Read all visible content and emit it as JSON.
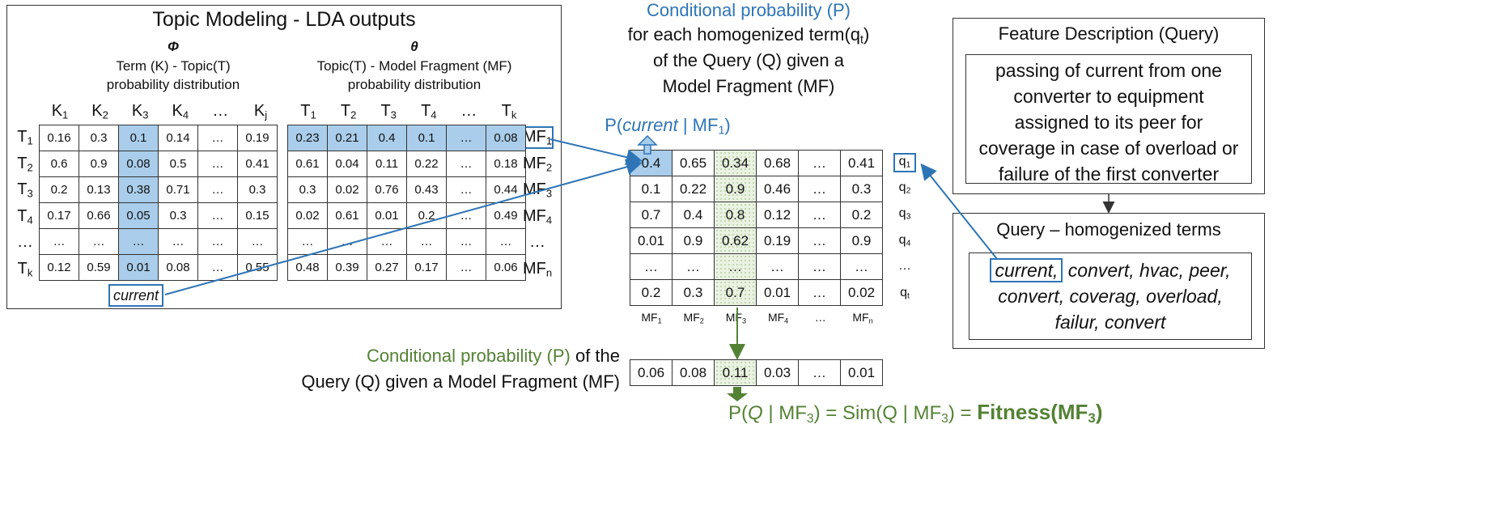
{
  "lda_title": "Topic Modeling - LDA outputs",
  "phi": {
    "symbol": "Φ",
    "caption1": "Term (K) - Topic(T)",
    "caption2": "probability distribution",
    "col_headers": [
      "K",
      "K",
      "K",
      "K",
      "…",
      "K"
    ],
    "col_subs": [
      "1",
      "2",
      "3",
      "4",
      "",
      "j"
    ],
    "row_headers": [
      "T",
      "T",
      "T",
      "T",
      "…",
      "T"
    ],
    "row_subs": [
      "1",
      "2",
      "3",
      "4",
      "",
      "k"
    ],
    "rows": [
      [
        "0.16",
        "0.3",
        "0.1",
        "0.14",
        "…",
        "0.19"
      ],
      [
        "0.6",
        "0.9",
        "0.08",
        "0.5",
        "…",
        "0.41"
      ],
      [
        "0.2",
        "0.13",
        "0.38",
        "0.71",
        "…",
        "0.3"
      ],
      [
        "0.17",
        "0.66",
        "0.05",
        "0.3",
        "…",
        "0.15"
      ],
      [
        "…",
        "…",
        "…",
        "…",
        "…",
        "…"
      ],
      [
        "0.12",
        "0.59",
        "0.01",
        "0.08",
        "…",
        "0.55"
      ]
    ],
    "term_label": "current"
  },
  "theta": {
    "symbol": "θ",
    "caption1": "Topic(T) - Model Fragment (MF)",
    "caption2": "probability distribution",
    "col_headers": [
      "T",
      "T",
      "T",
      "T",
      "…",
      "T"
    ],
    "col_subs": [
      "1",
      "2",
      "3",
      "4",
      "",
      "k"
    ],
    "row_headers": [
      "MF",
      "MF",
      "MF",
      "MF",
      "…",
      "MF"
    ],
    "row_subs": [
      "1",
      "2",
      "3",
      "4",
      "",
      "n"
    ],
    "rows": [
      [
        "0.23",
        "0.21",
        "0.4",
        "0.1",
        "…",
        "0.08"
      ],
      [
        "0.61",
        "0.04",
        "0.11",
        "0.22",
        "…",
        "0.18"
      ],
      [
        "0.3",
        "0.02",
        "0.76",
        "0.43",
        "…",
        "0.44"
      ],
      [
        "0.02",
        "0.61",
        "0.01",
        "0.2",
        "…",
        "0.49"
      ],
      [
        "…",
        "…",
        "…",
        "…",
        "…",
        "…"
      ],
      [
        "0.48",
        "0.39",
        "0.27",
        "0.17",
        "…",
        "0.06"
      ]
    ]
  },
  "cond_prob_term": {
    "line1": "Conditional probability (P)",
    "line2": "for each homogenized term(q",
    "line2_sub": "t",
    "line2_end": ")",
    "line3": "of the Query (Q) given a",
    "line4": "Model Fragment (MF)"
  },
  "p_current": {
    "prefix": "P(",
    "term": "current",
    "mid": " | MF",
    "sub": "1",
    "suffix": ")"
  },
  "query_matrix": {
    "rows": [
      [
        "0.4",
        "0.65",
        "0.34",
        "0.68",
        "…",
        "0.41"
      ],
      [
        "0.1",
        "0.22",
        "0.9",
        "0.46",
        "…",
        "0.3"
      ],
      [
        "0.7",
        "0.4",
        "0.8",
        "0.12",
        "…",
        "0.2"
      ],
      [
        "0.01",
        "0.9",
        "0.62",
        "0.19",
        "…",
        "0.9"
      ],
      [
        "…",
        "…",
        "…",
        "…",
        "…",
        "…"
      ],
      [
        "0.2",
        "0.3",
        "0.7",
        "0.01",
        "…",
        "0.02"
      ]
    ],
    "row_labels": [
      "q",
      "q",
      "q",
      "q",
      "…",
      "q"
    ],
    "row_subs": [
      "1",
      "2",
      "3",
      "4",
      "",
      "t"
    ],
    "col_labels": [
      "MF",
      "MF",
      "MF",
      "MF",
      "…",
      "MF"
    ],
    "col_subs": [
      "1",
      "2",
      "3",
      "4",
      "",
      "n"
    ]
  },
  "cond_prob_query": {
    "line1_colored": "Conditional probability (P)",
    "line1_rest": " of the",
    "line2": "Query (Q) given a Model Fragment (MF)"
  },
  "fitness_row": [
    "0.06",
    "0.08",
    "0.11",
    "0.03",
    "…",
    "0.01"
  ],
  "formula": {
    "part1": "P(",
    "q": "Q",
    "part2": " | MF",
    "sub1": "3",
    "part3": ") = Sim(Q | MF",
    "sub2": "3",
    "part4": ") = ",
    "fitness": "Fitness(MF",
    "fitness_sub": "3",
    "fitness_end": ")"
  },
  "feature": {
    "title": "Feature Description (Query)",
    "lines": [
      "passing of current from one",
      "converter to equipment",
      "assigned to its peer for",
      "coverage in case of overload or",
      "failure of the first converter"
    ]
  },
  "homogenized": {
    "title": "Query – homogenized terms",
    "first_term": "current,",
    "line1_rest": " convert, hvac, peer,",
    "line2": "convert, coverag, overload,",
    "line3": "failur, convert"
  },
  "colors": {
    "blue": "#2e75b6",
    "green": "#548235",
    "highlight_blue": "#a9cdea",
    "highlight_green": "#eaf2e2"
  }
}
